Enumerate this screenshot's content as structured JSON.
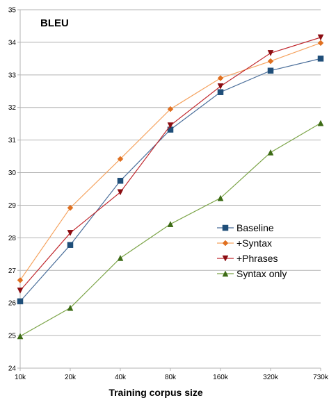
{
  "chart_data": {
    "type": "line",
    "title": "BLEU",
    "xlabel": "Training corpus size",
    "ylabel": "",
    "categories": [
      "10k",
      "20k",
      "40k",
      "80k",
      "160k",
      "320k",
      "730k"
    ],
    "ylim": [
      24,
      35
    ],
    "yticks": [
      24,
      25,
      26,
      27,
      28,
      29,
      30,
      31,
      32,
      33,
      34,
      35
    ],
    "grid": true,
    "legend_position": "right",
    "series": [
      {
        "name": "Baseline",
        "color": "#4a6e9a",
        "marker": "square",
        "marker_color": "#1f4e79",
        "values": [
          26.05,
          27.78,
          29.75,
          31.32,
          32.47,
          33.13,
          33.5
        ]
      },
      {
        "name": "+Syntax",
        "color": "#f5a25e",
        "marker": "diamond",
        "marker_color": "#e07020",
        "values": [
          26.7,
          28.92,
          30.42,
          31.95,
          32.9,
          33.42,
          33.98
        ]
      },
      {
        "name": "+Phrases",
        "color": "#c0272d",
        "marker": "triangle-down",
        "marker_color": "#8b0d12",
        "values": [
          26.38,
          28.15,
          29.4,
          31.45,
          32.65,
          33.67,
          34.15
        ]
      },
      {
        "name": "Syntax only",
        "color": "#7ba447",
        "marker": "triangle-up",
        "marker_color": "#3d6b16",
        "values": [
          24.98,
          25.85,
          27.38,
          28.42,
          29.22,
          30.62,
          31.52
        ]
      }
    ]
  }
}
